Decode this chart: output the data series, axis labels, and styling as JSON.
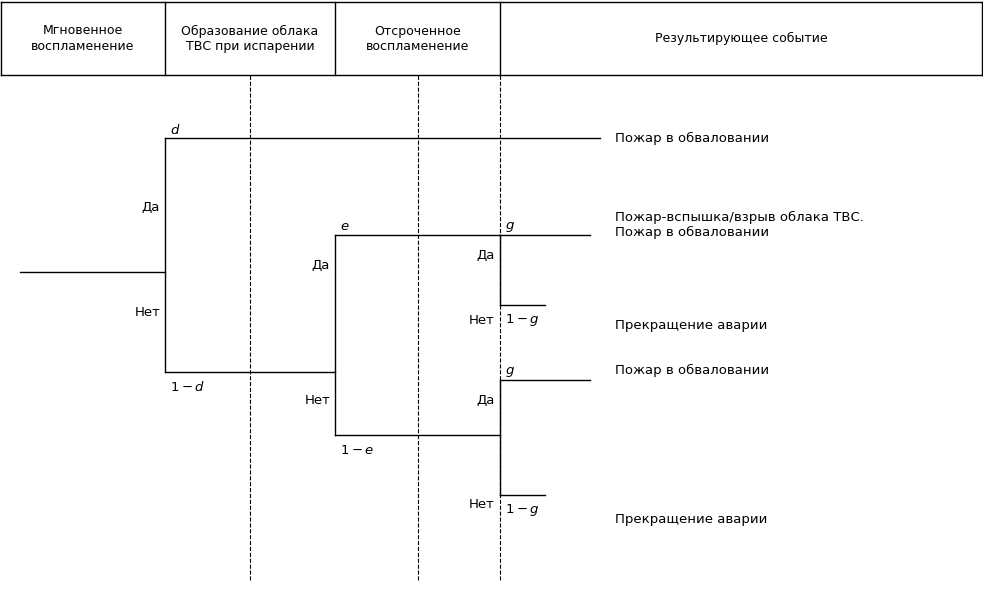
{
  "header_col1": "Мгновенное\nвоспламенение",
  "header_col2": "Образование облака\nТВС при испарении",
  "header_col3": "Отсроченное\nвоспламенение",
  "header_col4": "Результирующее событие",
  "outcomes": [
    "Пожар в обваловании",
    "Пожар-вспышка/взрыв облака ТВС.\nПожар в обваловании",
    "Прекращение аварии",
    "Пожар в обваловании",
    "Прекращение аварии"
  ],
  "background_color": "#ffffff",
  "line_color": "#000000",
  "text_color": "#000000"
}
